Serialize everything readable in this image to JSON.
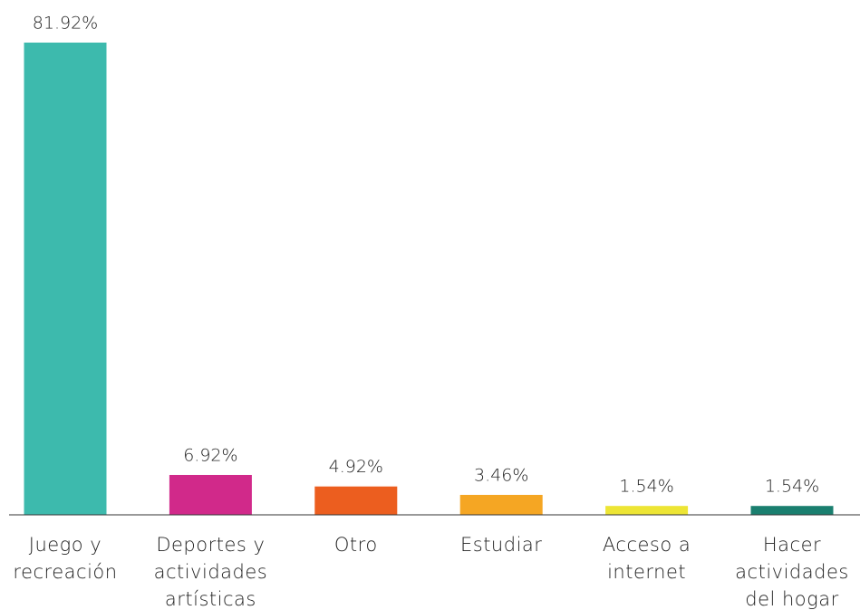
{
  "chart_data": {
    "type": "bar",
    "categories": [
      [
        "Juego y",
        "recreación"
      ],
      [
        "Deportes y",
        "actividades",
        "artísticas"
      ],
      [
        "Otro"
      ],
      [
        "Estudiar"
      ],
      [
        "Acceso a",
        "internet"
      ],
      [
        "Hacer",
        "actividades",
        "del hogar"
      ]
    ],
    "values": [
      81.92,
      6.92,
      4.92,
      3.46,
      1.54,
      1.54
    ],
    "value_labels": [
      "81.92%",
      "6.92%",
      "4.92%",
      "3.46%",
      "1.54%",
      "1.54%"
    ],
    "colors": [
      "#3dbaad",
      "#d1298a",
      "#ec5e1f",
      "#f5a623",
      "#ede534",
      "#1a7f6f"
    ]
  }
}
